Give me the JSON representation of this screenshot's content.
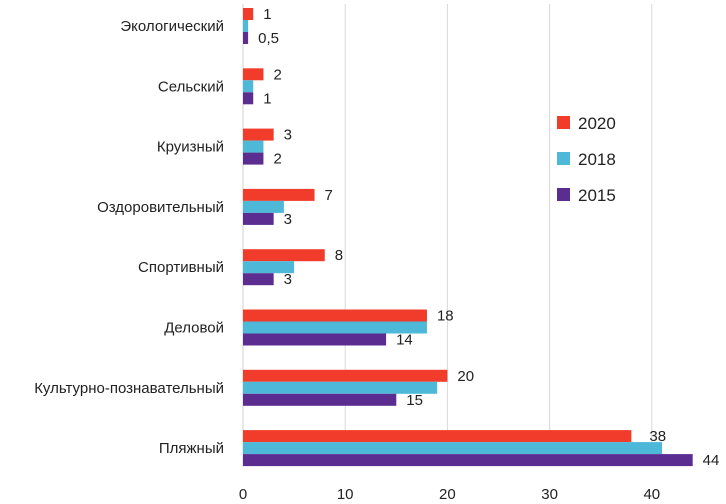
{
  "chart_data": {
    "type": "bar",
    "orientation": "horizontal",
    "categories": [
      "Экологический",
      "Сельский",
      "Круизный",
      "Оздоровительный",
      "Спортивный",
      "Деловой",
      "Культурно-познавательный",
      "Пляжный"
    ],
    "series": [
      {
        "name": "2020",
        "color": "#f23c2b",
        "values": [
          1,
          2,
          3,
          7,
          8,
          18,
          20,
          38
        ],
        "labels": [
          "1",
          "2",
          "3",
          "7",
          "8",
          "18",
          "20",
          "38"
        ]
      },
      {
        "name": "2018",
        "color": "#4db8d8",
        "values": [
          0.5,
          1,
          2,
          4,
          5,
          18,
          19,
          41
        ],
        "labels": [
          "",
          "",
          "",
          "",
          "",
          "",
          "",
          ""
        ]
      },
      {
        "name": "2015",
        "color": "#5b2d91",
        "values": [
          0.5,
          1,
          2,
          3,
          3,
          14,
          15,
          44
        ],
        "labels": [
          "0,5",
          "1",
          "2",
          "3",
          "3",
          "14",
          "15",
          "44"
        ]
      }
    ],
    "x_ticks": [
      "0",
      "10",
      "20",
      "30",
      "40"
    ],
    "xlim": [
      0,
      44.5
    ],
    "grid": true,
    "legend": {
      "placement": "right",
      "items": [
        "2020",
        "2018",
        "2015"
      ]
    },
    "title": "",
    "xlabel": "",
    "ylabel": ""
  }
}
